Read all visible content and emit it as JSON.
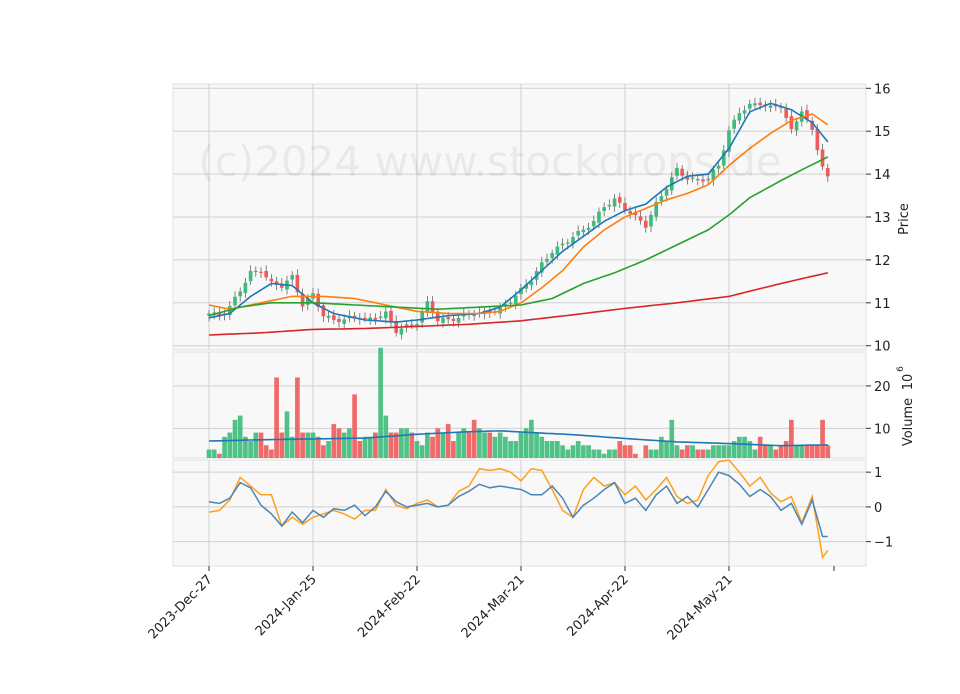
{
  "watermark": "(c)2024 www.stockdrops.de",
  "colors": {
    "up": "#3dbb7b",
    "down": "#f05a5a",
    "ma_short": "#1f77b4",
    "ma_mid": "#ff7f0e",
    "ma_long": "#2ca02c",
    "ma_200": "#d62728",
    "volume_ma": "#1f77b4",
    "osc_fast": "#4a86b8",
    "osc_slow": "#ff9f1c",
    "panel_bg": "#f8f8f8",
    "grid": "#d0d0d0"
  },
  "chart_data": {
    "type": "candlestick",
    "x_ticks": [
      "2023-Dec-27",
      "2024-Jan-25",
      "2024-Feb-22",
      "2024-Mar-21",
      "2024-Apr-22",
      "2024-May-21"
    ],
    "x_tick_positions": [
      0,
      20,
      40,
      60,
      80,
      100
    ],
    "num_bars": 120,
    "price_panel": {
      "ylabel": "Price",
      "ylim": [
        9.9,
        16.1
      ],
      "yticks": [
        10,
        11,
        12,
        13,
        14,
        15,
        16
      ],
      "ohlc_close_path": [
        [
          0,
          10.75
        ],
        [
          2,
          10.7
        ],
        [
          4,
          10.9
        ],
        [
          6,
          11.3
        ],
        [
          8,
          11.7
        ],
        [
          10,
          11.75
        ],
        [
          12,
          11.45
        ],
        [
          14,
          11.4
        ],
        [
          16,
          11.6
        ],
        [
          18,
          10.95
        ],
        [
          20,
          11.2
        ],
        [
          22,
          10.7
        ],
        [
          24,
          10.6
        ],
        [
          26,
          10.6
        ],
        [
          28,
          10.7
        ],
        [
          30,
          10.6
        ],
        [
          32,
          10.65
        ],
        [
          34,
          10.75
        ],
        [
          36,
          10.35
        ],
        [
          38,
          10.45
        ],
        [
          40,
          10.55
        ],
        [
          42,
          11.0
        ],
        [
          44,
          10.6
        ],
        [
          46,
          10.6
        ],
        [
          48,
          10.65
        ],
        [
          50,
          10.75
        ],
        [
          52,
          10.75
        ],
        [
          54,
          10.8
        ],
        [
          56,
          10.85
        ],
        [
          58,
          11.05
        ],
        [
          60,
          11.3
        ],
        [
          62,
          11.55
        ],
        [
          64,
          11.9
        ],
        [
          66,
          12.2
        ],
        [
          68,
          12.35
        ],
        [
          70,
          12.55
        ],
        [
          72,
          12.7
        ],
        [
          74,
          12.9
        ],
        [
          76,
          13.25
        ],
        [
          78,
          13.4
        ],
        [
          80,
          13.2
        ],
        [
          82,
          13.0
        ],
        [
          84,
          12.8
        ],
        [
          86,
          13.3
        ],
        [
          88,
          13.7
        ],
        [
          90,
          14.1
        ],
        [
          92,
          13.9
        ],
        [
          94,
          13.85
        ],
        [
          96,
          13.9
        ],
        [
          98,
          14.2
        ],
        [
          100,
          15.0
        ],
        [
          102,
          15.45
        ],
        [
          104,
          15.6
        ],
        [
          106,
          15.65
        ],
        [
          108,
          15.55
        ],
        [
          110,
          15.6
        ],
        [
          112,
          15.0
        ],
        [
          114,
          15.5
        ],
        [
          116,
          15.0
        ],
        [
          118,
          14.2
        ],
        [
          119,
          13.9
        ]
      ]
    },
    "moving_averages": [
      {
        "values_path": [
          [
            0,
            10.65
          ],
          [
            4,
            10.75
          ],
          [
            8,
            11.15
          ],
          [
            12,
            11.45
          ],
          [
            16,
            11.4
          ],
          [
            20,
            11.0
          ],
          [
            24,
            10.75
          ],
          [
            30,
            10.6
          ],
          [
            36,
            10.55
          ],
          [
            40,
            10.6
          ],
          [
            46,
            10.7
          ],
          [
            52,
            10.75
          ],
          [
            56,
            10.9
          ],
          [
            60,
            11.3
          ],
          [
            64,
            11.75
          ],
          [
            68,
            12.2
          ],
          [
            72,
            12.55
          ],
          [
            76,
            12.9
          ],
          [
            80,
            13.15
          ],
          [
            84,
            13.3
          ],
          [
            88,
            13.7
          ],
          [
            92,
            13.95
          ],
          [
            96,
            14.0
          ],
          [
            100,
            14.6
          ],
          [
            104,
            15.45
          ],
          [
            108,
            15.65
          ],
          [
            112,
            15.5
          ],
          [
            116,
            15.2
          ],
          [
            119,
            14.75
          ]
        ]
      },
      {
        "values_path": [
          [
            0,
            10.95
          ],
          [
            4,
            10.85
          ],
          [
            10,
            11.0
          ],
          [
            16,
            11.15
          ],
          [
            22,
            11.15
          ],
          [
            28,
            11.1
          ],
          [
            34,
            10.95
          ],
          [
            40,
            10.8
          ],
          [
            46,
            10.75
          ],
          [
            52,
            10.75
          ],
          [
            56,
            10.8
          ],
          [
            60,
            11.0
          ],
          [
            64,
            11.35
          ],
          [
            68,
            11.75
          ],
          [
            72,
            12.3
          ],
          [
            76,
            12.7
          ],
          [
            80,
            13.0
          ],
          [
            84,
            13.2
          ],
          [
            88,
            13.4
          ],
          [
            92,
            13.55
          ],
          [
            96,
            13.75
          ],
          [
            100,
            14.2
          ],
          [
            104,
            14.6
          ],
          [
            108,
            14.95
          ],
          [
            112,
            15.25
          ],
          [
            116,
            15.4
          ],
          [
            119,
            15.15
          ]
        ]
      },
      {
        "values_path": [
          [
            0,
            10.7
          ],
          [
            6,
            10.9
          ],
          [
            12,
            11.0
          ],
          [
            20,
            11.0
          ],
          [
            28,
            10.95
          ],
          [
            36,
            10.9
          ],
          [
            44,
            10.85
          ],
          [
            52,
            10.9
          ],
          [
            60,
            10.95
          ],
          [
            66,
            11.1
          ],
          [
            72,
            11.45
          ],
          [
            78,
            11.7
          ],
          [
            84,
            12.0
          ],
          [
            90,
            12.35
          ],
          [
            96,
            12.7
          ],
          [
            100,
            13.05
          ],
          [
            104,
            13.45
          ],
          [
            110,
            13.85
          ],
          [
            114,
            14.1
          ],
          [
            119,
            14.4
          ]
        ]
      },
      {
        "values_path": [
          [
            0,
            10.25
          ],
          [
            10,
            10.3
          ],
          [
            20,
            10.38
          ],
          [
            30,
            10.4
          ],
          [
            40,
            10.45
          ],
          [
            50,
            10.5
          ],
          [
            60,
            10.58
          ],
          [
            70,
            10.72
          ],
          [
            80,
            10.87
          ],
          [
            90,
            11.0
          ],
          [
            100,
            11.15
          ],
          [
            110,
            11.45
          ],
          [
            119,
            11.7
          ]
        ]
      }
    ],
    "volume_panel": {
      "ylabel": "Volume",
      "ylabel_exponent": "6",
      "ylim": [
        3,
        28
      ],
      "yticks": [
        10,
        20
      ],
      "volumes": [
        5,
        5,
        4,
        8,
        9,
        12,
        13,
        8,
        7,
        9,
        9,
        6,
        5,
        22,
        9,
        14,
        8,
        22,
        9,
        9,
        9,
        8,
        6,
        7,
        11,
        10,
        9,
        10,
        18,
        7,
        8,
        8,
        9,
        29,
        13,
        9,
        9,
        10,
        10,
        9,
        7,
        6,
        9,
        8,
        10,
        9,
        11,
        7,
        9,
        10,
        9,
        12,
        10,
        9,
        9,
        8,
        9,
        8,
        7,
        7,
        9,
        10,
        12,
        9,
        8,
        7,
        7,
        7,
        6,
        5,
        6,
        7,
        6,
        6,
        5,
        5,
        4,
        5,
        5,
        7,
        6,
        6,
        4,
        3,
        6,
        5,
        5,
        8,
        7,
        12,
        6,
        5,
        6,
        6,
        5,
        5,
        5,
        6,
        6,
        6,
        6,
        7,
        8,
        8,
        7,
        5,
        8,
        6,
        6,
        5,
        6,
        7,
        12,
        6,
        6,
        6,
        6,
        6,
        12,
        6
      ],
      "ma_path": [
        [
          0,
          7
        ],
        [
          10,
          7.3
        ],
        [
          20,
          7.5
        ],
        [
          30,
          7.7
        ],
        [
          40,
          8.6
        ],
        [
          50,
          9.2
        ],
        [
          56,
          9.4
        ],
        [
          62,
          9.0
        ],
        [
          70,
          8.5
        ],
        [
          80,
          7.6
        ],
        [
          90,
          6.8
        ],
        [
          100,
          6.4
        ],
        [
          110,
          5.9
        ],
        [
          119,
          6.1
        ]
      ]
    },
    "oscillator_panel": {
      "ylim": [
        -1.7,
        1.35
      ],
      "yticks": [
        -1,
        0,
        1
      ],
      "fast_path": [
        [
          0,
          0.15
        ],
        [
          2,
          0.1
        ],
        [
          4,
          0.25
        ],
        [
          6,
          0.7
        ],
        [
          8,
          0.55
        ],
        [
          10,
          0.05
        ],
        [
          12,
          -0.2
        ],
        [
          14,
          -0.55
        ],
        [
          16,
          -0.15
        ],
        [
          18,
          -0.45
        ],
        [
          20,
          -0.1
        ],
        [
          22,
          -0.3
        ],
        [
          24,
          -0.05
        ],
        [
          26,
          -0.1
        ],
        [
          28,
          0.05
        ],
        [
          30,
          -0.25
        ],
        [
          32,
          0.0
        ],
        [
          34,
          0.45
        ],
        [
          36,
          0.15
        ],
        [
          38,
          0.0
        ],
        [
          40,
          0.05
        ],
        [
          42,
          0.1
        ],
        [
          44,
          0.0
        ],
        [
          46,
          0.05
        ],
        [
          48,
          0.3
        ],
        [
          50,
          0.45
        ],
        [
          52,
          0.65
        ],
        [
          54,
          0.55
        ],
        [
          56,
          0.6
        ],
        [
          58,
          0.55
        ],
        [
          60,
          0.5
        ],
        [
          62,
          0.35
        ],
        [
          64,
          0.35
        ],
        [
          66,
          0.6
        ],
        [
          68,
          0.25
        ],
        [
          70,
          -0.3
        ],
        [
          72,
          0.05
        ],
        [
          74,
          0.25
        ],
        [
          76,
          0.5
        ],
        [
          78,
          0.7
        ],
        [
          80,
          0.1
        ],
        [
          82,
          0.25
        ],
        [
          84,
          -0.1
        ],
        [
          86,
          0.35
        ],
        [
          88,
          0.6
        ],
        [
          90,
          0.1
        ],
        [
          92,
          0.3
        ],
        [
          94,
          0.0
        ],
        [
          96,
          0.5
        ],
        [
          98,
          1.0
        ],
        [
          100,
          0.9
        ],
        [
          102,
          0.65
        ],
        [
          104,
          0.3
        ],
        [
          106,
          0.5
        ],
        [
          108,
          0.3
        ],
        [
          110,
          -0.1
        ],
        [
          112,
          0.1
        ],
        [
          114,
          -0.5
        ],
        [
          116,
          0.2
        ],
        [
          118,
          -0.85
        ],
        [
          119,
          -0.85
        ]
      ],
      "slow_path": [
        [
          0,
          -0.15
        ],
        [
          2,
          -0.1
        ],
        [
          4,
          0.2
        ],
        [
          6,
          0.85
        ],
        [
          8,
          0.6
        ],
        [
          10,
          0.35
        ],
        [
          12,
          0.35
        ],
        [
          14,
          -0.55
        ],
        [
          16,
          -0.3
        ],
        [
          18,
          -0.5
        ],
        [
          20,
          -0.3
        ],
        [
          22,
          -0.2
        ],
        [
          24,
          -0.1
        ],
        [
          26,
          -0.2
        ],
        [
          28,
          -0.35
        ],
        [
          30,
          -0.1
        ],
        [
          32,
          -0.1
        ],
        [
          34,
          0.5
        ],
        [
          36,
          0.05
        ],
        [
          38,
          -0.05
        ],
        [
          40,
          0.1
        ],
        [
          42,
          0.2
        ],
        [
          44,
          0.0
        ],
        [
          46,
          0.05
        ],
        [
          48,
          0.45
        ],
        [
          50,
          0.6
        ],
        [
          52,
          1.1
        ],
        [
          54,
          1.05
        ],
        [
          56,
          1.1
        ],
        [
          58,
          1.0
        ],
        [
          60,
          0.75
        ],
        [
          62,
          1.1
        ],
        [
          64,
          1.05
        ],
        [
          66,
          0.5
        ],
        [
          68,
          -0.1
        ],
        [
          70,
          -0.3
        ],
        [
          72,
          0.5
        ],
        [
          74,
          0.85
        ],
        [
          76,
          0.6
        ],
        [
          78,
          0.7
        ],
        [
          80,
          0.35
        ],
        [
          82,
          0.6
        ],
        [
          84,
          0.2
        ],
        [
          86,
          0.5
        ],
        [
          88,
          0.85
        ],
        [
          90,
          0.3
        ],
        [
          92,
          0.1
        ],
        [
          94,
          0.2
        ],
        [
          96,
          0.9
        ],
        [
          98,
          1.3
        ],
        [
          100,
          1.35
        ],
        [
          102,
          1.0
        ],
        [
          104,
          0.6
        ],
        [
          106,
          0.85
        ],
        [
          108,
          0.4
        ],
        [
          110,
          0.15
        ],
        [
          112,
          0.3
        ],
        [
          114,
          -0.45
        ],
        [
          116,
          0.3
        ],
        [
          118,
          -1.45
        ],
        [
          119,
          -1.25
        ]
      ]
    }
  }
}
